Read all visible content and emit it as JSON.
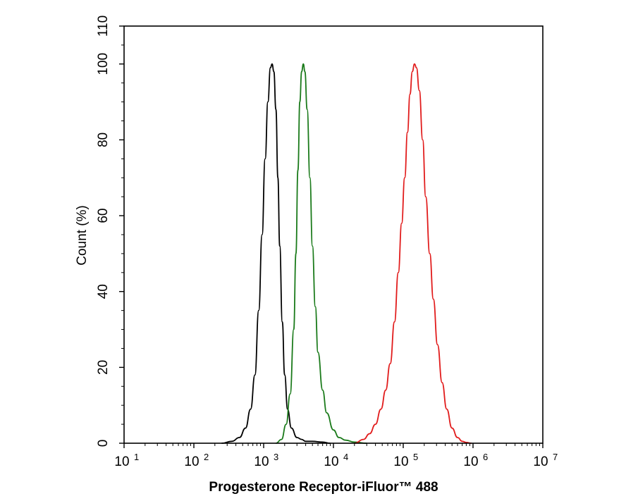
{
  "chart_data": {
    "type": "line",
    "xlabel": "Progesterone Receptor-iFluor™ 488",
    "ylabel": "Count  (%)",
    "xscale": "log",
    "xlim": [
      10,
      10000000
    ],
    "ylim": [
      0,
      110
    ],
    "x_ticks": [
      {
        "base": "10",
        "exp": "1"
      },
      {
        "base": "10",
        "exp": "2"
      },
      {
        "base": "10",
        "exp": "3"
      },
      {
        "base": "10",
        "exp": "4"
      },
      {
        "base": "10",
        "exp": "5"
      },
      {
        "base": "10",
        "exp": "6"
      },
      {
        "base": "10",
        "exp": "7"
      }
    ],
    "y_ticks": [
      "0",
      "20",
      "40",
      "60",
      "80",
      "100",
      "110"
    ],
    "y_tick_values": [
      0,
      20,
      40,
      60,
      80,
      100,
      110
    ],
    "grid": false,
    "series": [
      {
        "color": "#000000",
        "points": [
          [
            250,
            0
          ],
          [
            350,
            0.5
          ],
          [
            450,
            1.5
          ],
          [
            550,
            4
          ],
          [
            650,
            9
          ],
          [
            750,
            18
          ],
          [
            850,
            35
          ],
          [
            950,
            55
          ],
          [
            1050,
            75
          ],
          [
            1150,
            90
          ],
          [
            1250,
            99
          ],
          [
            1320,
            100
          ],
          [
            1400,
            98
          ],
          [
            1500,
            88
          ],
          [
            1600,
            70
          ],
          [
            1700,
            52
          ],
          [
            1850,
            32
          ],
          [
            2000,
            18
          ],
          [
            2200,
            9
          ],
          [
            2500,
            4
          ],
          [
            3000,
            1.5
          ],
          [
            3500,
            1
          ],
          [
            4000,
            0.5
          ],
          [
            5000,
            0.5
          ],
          [
            7000,
            0.3
          ],
          [
            9000,
            0
          ]
        ]
      },
      {
        "color": "#1a7a1a",
        "points": [
          [
            1500,
            0
          ],
          [
            1800,
            1
          ],
          [
            2100,
            5
          ],
          [
            2400,
            13
          ],
          [
            2700,
            30
          ],
          [
            2900,
            50
          ],
          [
            3100,
            72
          ],
          [
            3300,
            90
          ],
          [
            3500,
            98
          ],
          [
            3700,
            100
          ],
          [
            3900,
            98
          ],
          [
            4200,
            88
          ],
          [
            4600,
            70
          ],
          [
            5000,
            52
          ],
          [
            5500,
            36
          ],
          [
            6000,
            24
          ],
          [
            7000,
            14
          ],
          [
            8000,
            8
          ],
          [
            10000,
            3.5
          ],
          [
            12000,
            1.5
          ],
          [
            15000,
            0.8
          ],
          [
            20000,
            0.3
          ],
          [
            30000,
            0
          ]
        ]
      },
      {
        "color": "#e11b1b",
        "points": [
          [
            20000,
            0
          ],
          [
            27000,
            1
          ],
          [
            33000,
            2.5
          ],
          [
            40000,
            5
          ],
          [
            48000,
            9
          ],
          [
            56000,
            14
          ],
          [
            65000,
            21
          ],
          [
            75000,
            32
          ],
          [
            85000,
            45
          ],
          [
            95000,
            58
          ],
          [
            105000,
            70
          ],
          [
            115000,
            82
          ],
          [
            125000,
            92
          ],
          [
            135000,
            98
          ],
          [
            145000,
            100
          ],
          [
            155000,
            99
          ],
          [
            170000,
            93
          ],
          [
            190000,
            80
          ],
          [
            210000,
            65
          ],
          [
            240000,
            50
          ],
          [
            270000,
            38
          ],
          [
            310000,
            26
          ],
          [
            360000,
            16
          ],
          [
            420000,
            9
          ],
          [
            500000,
            4
          ],
          [
            600000,
            1.5
          ],
          [
            700000,
            0.5
          ],
          [
            800000,
            0.2
          ],
          [
            950000,
            0
          ]
        ]
      }
    ]
  }
}
